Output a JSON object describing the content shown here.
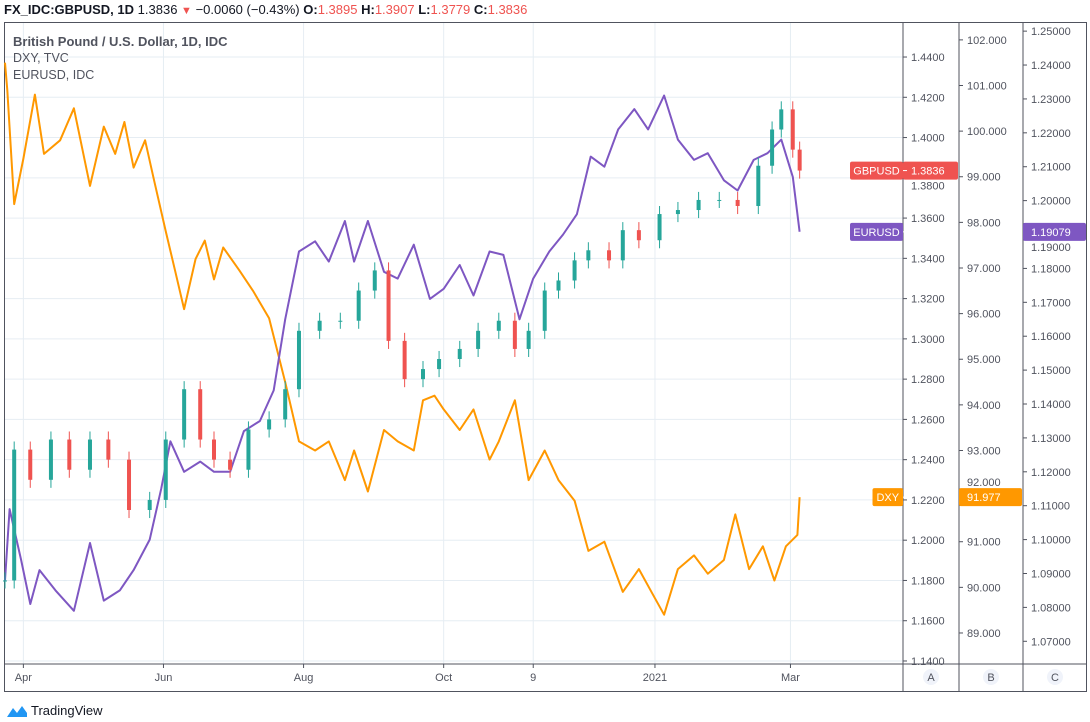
{
  "header": {
    "symbol": "FX_IDC:GBPUSD, 1D",
    "last": "1.3836",
    "change": "−0.0060 (−0.43%)",
    "o_label": "O:",
    "o": "1.3895",
    "h_label": "H:",
    "h": "1.3907",
    "l_label": "L:",
    "l": "1.3779",
    "c_label": "C:",
    "c": "1.3836"
  },
  "legend": {
    "main": "British Pound / U.S. Dollar, 1D, IDC",
    "s2": "DXY, TVC",
    "s3": "EURUSD, IDC"
  },
  "footer": {
    "brand": "TradingView"
  },
  "scale_labels": [
    "A",
    "B",
    "C"
  ],
  "chart_data": {
    "type": "line",
    "grid": true,
    "x_range": [
      "2020-03-24",
      "2021-04-19"
    ],
    "x_ticks": [
      {
        "label": "Apr",
        "date": "2020-04-01"
      },
      {
        "label": "Jun",
        "date": "2020-06-01"
      },
      {
        "label": "Aug",
        "date": "2020-08-01"
      },
      {
        "label": "Oct",
        "date": "2020-10-01"
      },
      {
        "label": "9",
        "date": "2020-11-09"
      },
      {
        "label": "2021",
        "date": "2021-01-01"
      },
      {
        "label": "Mar",
        "date": "2021-03-01"
      }
    ],
    "series": [
      {
        "name": "GBPUSD",
        "kind": "candlestick-closes",
        "color_up": "#26a69a",
        "color_down": "#ef5350",
        "label_color": "#ef5350",
        "last": "1.3836",
        "axis": "A",
        "ylim": [
          1.1385,
          1.4569
        ],
        "y_ticks": [
          "1.4400",
          "1.4200",
          "1.4000",
          "1.3800",
          "1.3600",
          "1.3400",
          "1.3200",
          "1.3000",
          "1.2800",
          "1.2600",
          "1.2400",
          "1.2200",
          "1.2000",
          "1.1800",
          "1.1600",
          "1.1400"
        ],
        "points": [
          [
            "2020-03-24",
            1.18
          ],
          [
            "2020-03-28",
            1.245
          ],
          [
            "2020-04-04",
            1.23
          ],
          [
            "2020-04-13",
            1.25
          ],
          [
            "2020-04-21",
            1.235
          ],
          [
            "2020-04-30",
            1.25
          ],
          [
            "2020-05-08",
            1.24
          ],
          [
            "2020-05-17",
            1.215
          ],
          [
            "2020-05-26",
            1.22
          ],
          [
            "2020-06-02",
            1.25
          ],
          [
            "2020-06-10",
            1.275
          ],
          [
            "2020-06-17",
            1.25
          ],
          [
            "2020-06-23",
            1.24
          ],
          [
            "2020-06-30",
            1.235
          ],
          [
            "2020-07-08",
            1.255
          ],
          [
            "2020-07-17",
            1.26
          ],
          [
            "2020-07-24",
            1.275
          ],
          [
            "2020-07-30",
            1.304
          ],
          [
            "2020-08-08",
            1.309
          ],
          [
            "2020-08-17",
            1.309
          ],
          [
            "2020-08-25",
            1.324
          ],
          [
            "2020-09-01",
            1.334
          ],
          [
            "2020-09-07",
            1.299
          ],
          [
            "2020-09-14",
            1.28
          ],
          [
            "2020-09-22",
            1.285
          ],
          [
            "2020-09-29",
            1.29
          ],
          [
            "2020-10-08",
            1.295
          ],
          [
            "2020-10-16",
            1.304
          ],
          [
            "2020-10-25",
            1.309
          ],
          [
            "2020-11-01",
            1.295
          ],
          [
            "2020-11-07",
            1.304
          ],
          [
            "2020-11-14",
            1.324
          ],
          [
            "2020-11-20",
            1.329
          ],
          [
            "2020-11-27",
            1.339
          ],
          [
            "2020-12-03",
            1.344
          ],
          [
            "2020-12-12",
            1.339
          ],
          [
            "2020-12-18",
            1.354
          ],
          [
            "2020-12-25",
            1.349
          ],
          [
            "2021-01-03",
            1.362
          ],
          [
            "2021-01-11",
            1.364
          ],
          [
            "2021-01-20",
            1.369
          ],
          [
            "2021-01-29",
            1.369
          ],
          [
            "2021-02-06",
            1.366
          ],
          [
            "2021-02-15",
            1.386
          ],
          [
            "2021-02-21",
            1.404
          ],
          [
            "2021-02-25",
            1.414
          ],
          [
            "2021-03-02",
            1.394
          ],
          [
            "2021-03-05",
            1.3836
          ]
        ]
      },
      {
        "name": "DXY",
        "kind": "line",
        "color": "#ff9800",
        "last": "91.977",
        "axis": "B",
        "ylim": [
          88.32,
          102.37
        ],
        "y_ticks": [
          "102.000",
          "101.000",
          "100.000",
          "99.000",
          "98.000",
          "97.000",
          "96.000",
          "95.000",
          "94.000",
          "93.000",
          "92.000",
          "91.000",
          "90.000",
          "89.000"
        ],
        "points": [
          [
            "2020-03-24",
            101.5
          ],
          [
            "2020-03-25",
            100.9
          ],
          [
            "2020-03-28",
            98.4
          ],
          [
            "2020-04-01",
            99.4
          ],
          [
            "2020-04-06",
            100.8
          ],
          [
            "2020-04-10",
            99.5
          ],
          [
            "2020-04-17",
            99.8
          ],
          [
            "2020-04-23",
            100.5
          ],
          [
            "2020-04-30",
            98.8
          ],
          [
            "2020-05-06",
            100.1
          ],
          [
            "2020-05-11",
            99.5
          ],
          [
            "2020-05-15",
            100.2
          ],
          [
            "2020-05-19",
            99.2
          ],
          [
            "2020-05-24",
            99.8
          ],
          [
            "2020-05-28",
            98.9
          ],
          [
            "2020-06-02",
            97.8
          ],
          [
            "2020-06-06",
            96.95
          ],
          [
            "2020-06-10",
            96.1
          ],
          [
            "2020-06-15",
            97.2
          ],
          [
            "2020-06-19",
            97.6
          ],
          [
            "2020-06-23",
            96.75
          ],
          [
            "2020-06-27",
            97.45
          ],
          [
            "2020-07-04",
            96.95
          ],
          [
            "2020-07-10",
            96.5
          ],
          [
            "2020-07-17",
            95.9
          ],
          [
            "2020-07-24",
            94.5
          ],
          [
            "2020-07-30",
            93.2
          ],
          [
            "2020-08-06",
            93.0
          ],
          [
            "2020-08-12",
            93.2
          ],
          [
            "2020-08-19",
            92.35
          ],
          [
            "2020-08-23",
            93.0
          ],
          [
            "2020-08-29",
            92.1
          ],
          [
            "2020-09-05",
            93.45
          ],
          [
            "2020-09-11",
            93.2
          ],
          [
            "2020-09-18",
            93.0
          ],
          [
            "2020-09-22",
            94.1
          ],
          [
            "2020-09-27",
            94.2
          ],
          [
            "2020-10-01",
            93.9
          ],
          [
            "2020-10-08",
            93.45
          ],
          [
            "2020-10-14",
            93.9
          ],
          [
            "2020-10-21",
            92.8
          ],
          [
            "2020-10-25",
            93.2
          ],
          [
            "2020-11-01",
            94.1
          ],
          [
            "2020-11-07",
            92.35
          ],
          [
            "2020-11-14",
            93.0
          ],
          [
            "2020-11-20",
            92.35
          ],
          [
            "2020-11-27",
            91.9
          ],
          [
            "2020-12-03",
            90.8
          ],
          [
            "2020-12-10",
            91.0
          ],
          [
            "2020-12-18",
            89.9
          ],
          [
            "2020-12-25",
            90.4
          ],
          [
            "2020-12-31",
            89.85
          ],
          [
            "2021-01-05",
            89.4
          ],
          [
            "2021-01-11",
            90.4
          ],
          [
            "2021-01-18",
            90.7
          ],
          [
            "2021-01-24",
            90.3
          ],
          [
            "2021-01-31",
            90.6
          ],
          [
            "2021-02-05",
            91.6
          ],
          [
            "2021-02-11",
            90.4
          ],
          [
            "2021-02-17",
            90.9
          ],
          [
            "2021-02-22",
            90.15
          ],
          [
            "2021-02-27",
            90.9
          ],
          [
            "2021-03-04",
            91.15
          ],
          [
            "2021-03-05",
            91.977
          ]
        ]
      },
      {
        "name": "EURUSD",
        "kind": "line",
        "color": "#7e57c2",
        "last": "1.19079",
        "axis": "C",
        "ylim": [
          1.0633,
          1.2524
        ],
        "y_ticks": [
          "1.25000",
          "1.24000",
          "1.23000",
          "1.22000",
          "1.21000",
          "1.20000",
          "1.19000",
          "1.18000",
          "1.17000",
          "1.16000",
          "1.15000",
          "1.14000",
          "1.13000",
          "1.12000",
          "1.11000",
          "1.10000",
          "1.09000",
          "1.08000",
          "1.07000"
        ],
        "points": [
          [
            "2020-03-24",
            1.088
          ],
          [
            "2020-03-26",
            1.109
          ],
          [
            "2020-03-31",
            1.094
          ],
          [
            "2020-04-04",
            1.081
          ],
          [
            "2020-04-08",
            1.091
          ],
          [
            "2020-04-15",
            1.085
          ],
          [
            "2020-04-23",
            1.079
          ],
          [
            "2020-04-30",
            1.099
          ],
          [
            "2020-05-06",
            1.082
          ],
          [
            "2020-05-13",
            1.085
          ],
          [
            "2020-05-19",
            1.091
          ],
          [
            "2020-05-26",
            1.1
          ],
          [
            "2020-05-31",
            1.115
          ],
          [
            "2020-06-04",
            1.129
          ],
          [
            "2020-06-10",
            1.12
          ],
          [
            "2020-06-17",
            1.123
          ],
          [
            "2020-06-23",
            1.12
          ],
          [
            "2020-06-30",
            1.12
          ],
          [
            "2020-07-06",
            1.132
          ],
          [
            "2020-07-13",
            1.135
          ],
          [
            "2020-07-19",
            1.144
          ],
          [
            "2020-07-24",
            1.165
          ],
          [
            "2020-07-30",
            1.185
          ],
          [
            "2020-08-06",
            1.188
          ],
          [
            "2020-08-12",
            1.182
          ],
          [
            "2020-08-19",
            1.194
          ],
          [
            "2020-08-23",
            1.182
          ],
          [
            "2020-08-29",
            1.194
          ],
          [
            "2020-09-05",
            1.179
          ],
          [
            "2020-09-11",
            1.177
          ],
          [
            "2020-09-18",
            1.187
          ],
          [
            "2020-09-25",
            1.171
          ],
          [
            "2020-10-01",
            1.174
          ],
          [
            "2020-10-08",
            1.181
          ],
          [
            "2020-10-14",
            1.172
          ],
          [
            "2020-10-21",
            1.185
          ],
          [
            "2020-10-27",
            1.184
          ],
          [
            "2020-11-03",
            1.165
          ],
          [
            "2020-11-09",
            1.177
          ],
          [
            "2020-11-16",
            1.185
          ],
          [
            "2020-11-22",
            1.19
          ],
          [
            "2020-11-28",
            1.196
          ],
          [
            "2020-12-04",
            1.213
          ],
          [
            "2020-12-10",
            1.21
          ],
          [
            "2020-12-16",
            1.221
          ],
          [
            "2020-12-23",
            1.227
          ],
          [
            "2020-12-29",
            1.221
          ],
          [
            "2021-01-05",
            1.231
          ],
          [
            "2021-01-11",
            1.218
          ],
          [
            "2021-01-18",
            1.212
          ],
          [
            "2021-01-24",
            1.214
          ],
          [
            "2021-01-31",
            1.206
          ],
          [
            "2021-02-06",
            1.203
          ],
          [
            "2021-02-13",
            1.212
          ],
          [
            "2021-02-19",
            1.214
          ],
          [
            "2021-02-25",
            1.218
          ],
          [
            "2021-03-02",
            1.207
          ],
          [
            "2021-03-05",
            1.19079
          ]
        ]
      }
    ]
  }
}
